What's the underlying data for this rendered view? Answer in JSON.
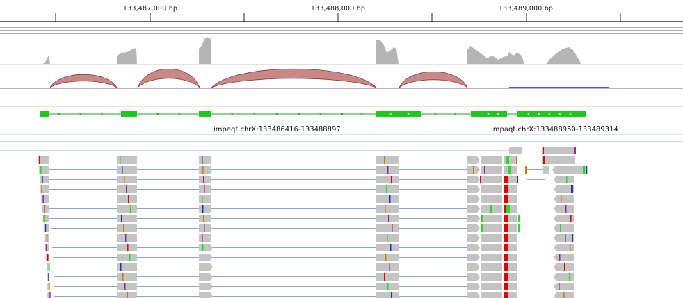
{
  "ruler": {
    "ticks": [
      {
        "label": "133,487,000 bp"
      },
      {
        "label": "133,488,000 bp"
      },
      {
        "label": "133,489,000 bp"
      }
    ]
  },
  "genes": [
    {
      "name": "impaqt.chrX:133486416-133488897",
      "strand": "+"
    },
    {
      "name": "impaqt.chrX:133488950-133489314",
      "strand": "-"
    }
  ],
  "colors": {
    "coverage": "#b5b5b5",
    "junction_fill": "#c88888",
    "junction_stroke": "#8b3a3a",
    "gene": "#1ec81e",
    "gene_line": "#22a022",
    "read": "#c4c4c4",
    "splice_line": "#8aa6c4",
    "mismatch_red": "#e00000",
    "mismatch_green": "#22dd22",
    "mismatch_blue": "#2233bb",
    "mismatch_orange": "#cc7a00",
    "mismatch_purple": "#8a2aa0"
  }
}
